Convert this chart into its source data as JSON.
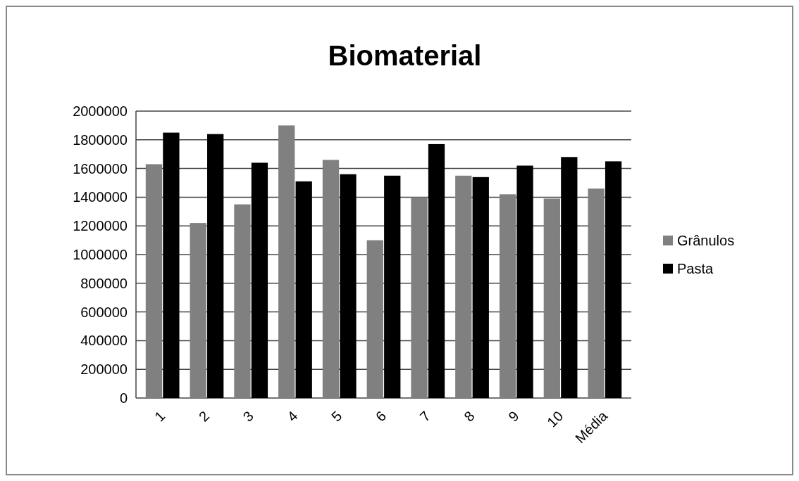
{
  "chart_data": {
    "type": "bar",
    "title": "Biomaterial",
    "categories": [
      "1",
      "2",
      "3",
      "4",
      "5",
      "6",
      "7",
      "8",
      "9",
      "10",
      "Média"
    ],
    "series": [
      {
        "name": "Grânulos",
        "color": "#808080",
        "values": [
          1630000,
          1220000,
          1350000,
          1900000,
          1660000,
          1100000,
          1400000,
          1550000,
          1420000,
          1390000,
          1460000
        ]
      },
      {
        "name": "Pasta",
        "color": "#000000",
        "values": [
          1850000,
          1840000,
          1640000,
          1510000,
          1560000,
          1550000,
          1770000,
          1540000,
          1620000,
          1680000,
          1650000
        ]
      }
    ],
    "ylim": [
      0,
      2000000
    ],
    "yticks": [
      0,
      200000,
      400000,
      600000,
      800000,
      1000000,
      1200000,
      1400000,
      1600000,
      1800000,
      2000000
    ],
    "grid": "y",
    "legend": "right"
  }
}
